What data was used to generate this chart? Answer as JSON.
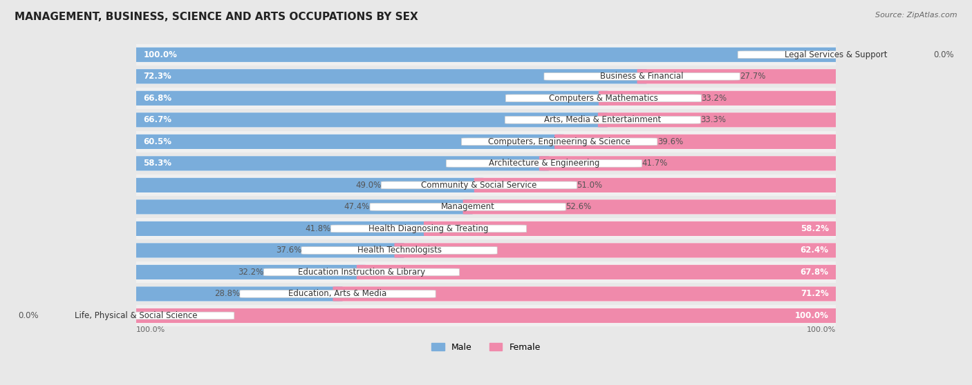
{
  "title": "MANAGEMENT, BUSINESS, SCIENCE AND ARTS OCCUPATIONS BY SEX",
  "source": "Source: ZipAtlas.com",
  "categories": [
    "Legal Services & Support",
    "Business & Financial",
    "Computers & Mathematics",
    "Arts, Media & Entertainment",
    "Computers, Engineering & Science",
    "Architecture & Engineering",
    "Community & Social Service",
    "Management",
    "Health Diagnosing & Treating",
    "Health Technologists",
    "Education Instruction & Library",
    "Education, Arts & Media",
    "Life, Physical & Social Science"
  ],
  "male_pct": [
    100.0,
    72.3,
    66.8,
    66.7,
    60.5,
    58.3,
    49.0,
    47.4,
    41.8,
    37.6,
    32.2,
    28.8,
    0.0
  ],
  "female_pct": [
    0.0,
    27.7,
    33.2,
    33.3,
    39.6,
    41.7,
    51.0,
    52.6,
    58.2,
    62.4,
    67.8,
    71.2,
    100.0
  ],
  "male_color": "#7aaddb",
  "female_color": "#f08aab",
  "bg_color": "#e8e8e8",
  "bar_bg_color": "#dcdcdc",
  "row_bg_even": "#e8e8e8",
  "row_bg_odd": "#f0f0f0",
  "title_fontsize": 11,
  "label_fontsize": 8.5,
  "pct_fontsize": 8.5,
  "bar_height": 0.68,
  "legend_fontsize": 9
}
